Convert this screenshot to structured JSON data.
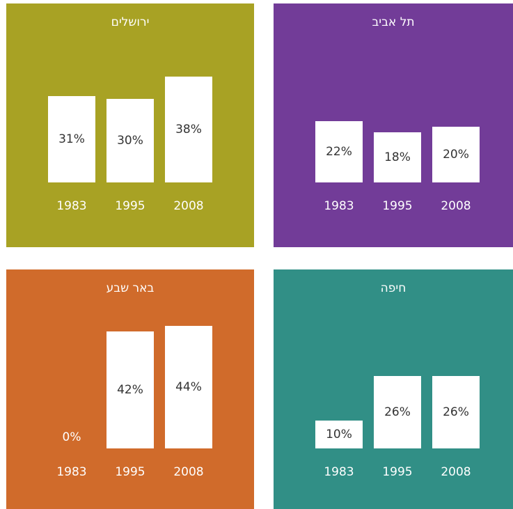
{
  "chart_data": [
    {
      "type": "bar",
      "title": "ירושלים",
      "color": "#a8a224",
      "categories": [
        "1983",
        "1995",
        "2008"
      ],
      "values": [
        31,
        30,
        38
      ],
      "value_labels": [
        "31%",
        "30%",
        "38%"
      ],
      "ylim": [
        0,
        50
      ]
    },
    {
      "type": "bar",
      "title": "תל אביב",
      "color": "#723c98",
      "categories": [
        "1983",
        "1995",
        "2008"
      ],
      "values": [
        22,
        18,
        20
      ],
      "value_labels": [
        "22%",
        "18%",
        "20%"
      ],
      "ylim": [
        0,
        50
      ]
    },
    {
      "type": "bar",
      "title": "באר שבע",
      "color": "#d06b2b",
      "categories": [
        "1983",
        "1995",
        "2008"
      ],
      "values": [
        0,
        42,
        44
      ],
      "value_labels": [
        "0%",
        "42%",
        "44%"
      ],
      "ylim": [
        0,
        50
      ]
    },
    {
      "type": "bar",
      "title": "חיפה",
      "color": "#318f86",
      "categories": [
        "1983",
        "1995",
        "2008"
      ],
      "values": [
        10,
        26,
        26
      ],
      "value_labels": [
        "10%",
        "26%",
        "26%"
      ],
      "ylim": [
        0,
        50
      ]
    }
  ]
}
